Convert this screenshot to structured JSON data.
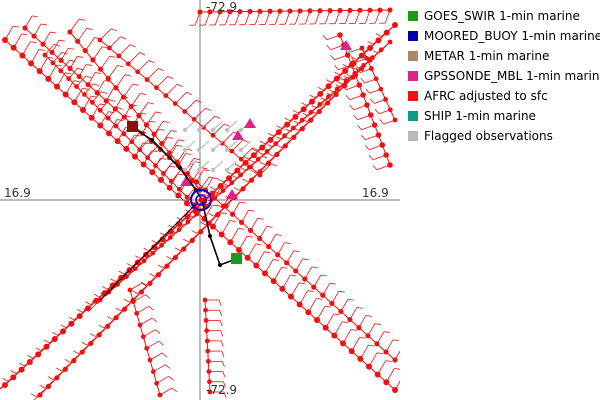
{
  "axes": {
    "top_label": "-72.9",
    "bottom_label": "-72.9",
    "left_label": "16.9",
    "right_label": "16.9"
  },
  "legend": [
    {
      "label": "GOES_SWIR 1-min marine",
      "color": "#1a9a1a"
    },
    {
      "label": "MOORED_BUOY 1-min marine",
      "color": "#0000aa"
    },
    {
      "label": "METAR 1-min marine",
      "color": "#a88868"
    },
    {
      "label": "GPSSONDE_MBL 1-min marine",
      "color": "#dd2288"
    },
    {
      "label": "AFRC adjusted to sfc",
      "color": "#ee1111"
    },
    {
      "label": "SHIP 1-min marine",
      "color": "#119988"
    },
    {
      "label": "Flagged observations",
      "color": "#b8b8b8"
    }
  ],
  "colors": {
    "observation": "#ee1111",
    "flagged": "#c0c0c0",
    "track": "#000000",
    "center_ring": "#0000cc",
    "ship_marker": "#8b1010",
    "goes_marker": "#1a9a1a",
    "gpssonde": "#dd2288",
    "gridline": "#777777"
  }
}
